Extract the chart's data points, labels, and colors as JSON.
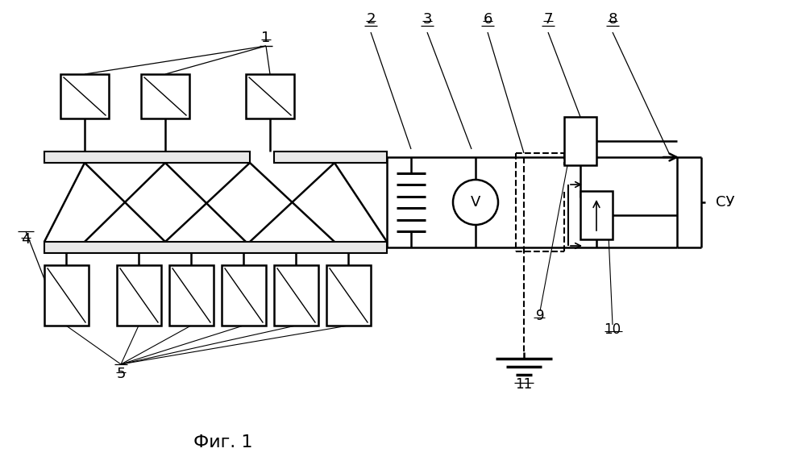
{
  "bg_color": "#ffffff",
  "line_color": "#000000",
  "fig_width": 10.0,
  "fig_height": 5.77,
  "dpi": 100,
  "title": "Фиг. 1"
}
